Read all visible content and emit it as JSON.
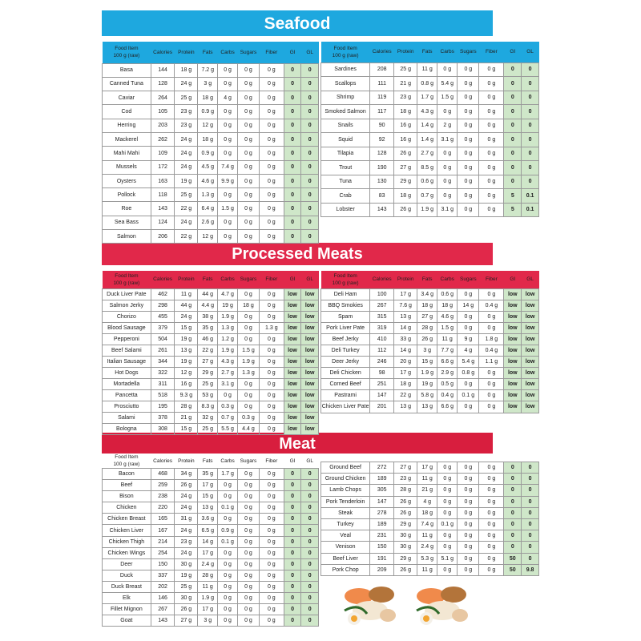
{
  "colors": {
    "seafood": "#1ea8df",
    "processed": "#e1284a",
    "meat": "#d81e3e",
    "gi_cell": "#cfe7c9"
  },
  "sections": {
    "seafood": "Seafood",
    "processed": "Processed Meats",
    "meat": "Meat"
  },
  "headers": [
    "Food Item\n100 g (raw)",
    "Calories",
    "Protein",
    "Fats",
    "Carbs",
    "Sugars",
    "Fiber",
    "GI",
    "GL"
  ],
  "tables": {
    "seafood_left": [
      [
        "Basa",
        "144",
        "18 g",
        "7.2 g",
        "0 g",
        "0 g",
        "0 g",
        "0",
        "0"
      ],
      [
        "Canned Tuna",
        "128",
        "24 g",
        "3 g",
        "0 g",
        "0 g",
        "0 g",
        "0",
        "0"
      ],
      [
        "Caviar",
        "264",
        "25 g",
        "18 g",
        "4 g",
        "0 g",
        "0 g",
        "0",
        "0"
      ],
      [
        "Cod",
        "105",
        "23 g",
        "0.9 g",
        "0 g",
        "0 g",
        "0 g",
        "0",
        "0"
      ],
      [
        "Herring",
        "203",
        "23 g",
        "12 g",
        "0 g",
        "0 g",
        "0 g",
        "0",
        "0"
      ],
      [
        "Mackerel",
        "262",
        "24 g",
        "18 g",
        "0 g",
        "0 g",
        "0 g",
        "0",
        "0"
      ],
      [
        "Mahi Mahi",
        "109",
        "24 g",
        "0.9 g",
        "0 g",
        "0 g",
        "0 g",
        "0",
        "0"
      ],
      [
        "Mussels",
        "172",
        "24 g",
        "4.5 g",
        "7.4 g",
        "0 g",
        "0 g",
        "0",
        "0"
      ],
      [
        "Oysters",
        "163",
        "19 g",
        "4.6 g",
        "9.9 g",
        "0 g",
        "0 g",
        "0",
        "0"
      ],
      [
        "Pollock",
        "118",
        "25 g",
        "1.3 g",
        "0 g",
        "0 g",
        "0 g",
        "0",
        "0"
      ],
      [
        "Roe",
        "143",
        "22 g",
        "6.4 g",
        "1.5 g",
        "0 g",
        "0 g",
        "0",
        "0"
      ],
      [
        "Sea Bass",
        "124",
        "24 g",
        "2.6 g",
        "0 g",
        "0 g",
        "0 g",
        "0",
        "0"
      ],
      [
        "Salmon",
        "206",
        "22 g",
        "12 g",
        "0 g",
        "0 g",
        "0 g",
        "0",
        "0"
      ]
    ],
    "seafood_right": [
      [
        "Sardines",
        "208",
        "25 g",
        "11 g",
        "0 g",
        "0 g",
        "0 g",
        "0",
        "0"
      ],
      [
        "Scallops",
        "111",
        "21 g",
        "0.8 g",
        "5.4 g",
        "0 g",
        "0 g",
        "0",
        "0"
      ],
      [
        "Shrimp",
        "119",
        "23 g",
        "1.7 g",
        "1.5 g",
        "0 g",
        "0 g",
        "0",
        "0"
      ],
      [
        "Smoked Salmon",
        "117",
        "18 g",
        "4.3 g",
        "0 g",
        "0 g",
        "0 g",
        "0",
        "0"
      ],
      [
        "Snails",
        "90",
        "16 g",
        "1.4 g",
        "2 g",
        "0 g",
        "0 g",
        "0",
        "0"
      ],
      [
        "Squid",
        "92",
        "16 g",
        "1.4 g",
        "3.1 g",
        "0 g",
        "0 g",
        "0",
        "0"
      ],
      [
        "Tilapia",
        "128",
        "26 g",
        "2.7 g",
        "0 g",
        "0 g",
        "0 g",
        "0",
        "0"
      ],
      [
        "Trout",
        "190",
        "27 g",
        "8.5 g",
        "0 g",
        "0 g",
        "0 g",
        "0",
        "0"
      ],
      [
        "Tuna",
        "130",
        "29 g",
        "0.6 g",
        "0 g",
        "0 g",
        "0 g",
        "0",
        "0"
      ],
      [
        "Crab",
        "83",
        "18 g",
        "0.7 g",
        "0 g",
        "0 g",
        "0 g",
        "5",
        "0.1"
      ],
      [
        "Lobster",
        "143",
        "26 g",
        "1.9 g",
        "3.1 g",
        "0 g",
        "0 g",
        "5",
        "0.1"
      ]
    ],
    "processed_left": [
      [
        "Duck Liver Pate",
        "462",
        "11 g",
        "44 g",
        "4.7 g",
        "0 g",
        "0 g",
        "low",
        "low"
      ],
      [
        "Salmon Jerky",
        "298",
        "44 g",
        "4.4 g",
        "19 g",
        "18 g",
        "0 g",
        "low",
        "low"
      ],
      [
        "Chorizo",
        "455",
        "24 g",
        "38 g",
        "1.9 g",
        "0 g",
        "0 g",
        "low",
        "low"
      ],
      [
        "Blood Sausage",
        "379",
        "15 g",
        "35 g",
        "1.3 g",
        "0 g",
        "1.3 g",
        "low",
        "low"
      ],
      [
        "Pepperoni",
        "504",
        "19 g",
        "46 g",
        "1.2 g",
        "0 g",
        "0 g",
        "low",
        "low"
      ],
      [
        "Beef Salami",
        "261",
        "13 g",
        "22 g",
        "1.9 g",
        "1.5 g",
        "0 g",
        "low",
        "low"
      ],
      [
        "Italian Sausage",
        "344",
        "19 g",
        "27 g",
        "4.3 g",
        "1.9 g",
        "0 g",
        "low",
        "low"
      ],
      [
        "Hot Dogs",
        "322",
        "12 g",
        "29 g",
        "2.7 g",
        "1.3 g",
        "0 g",
        "low",
        "low"
      ],
      [
        "Mortadella",
        "311",
        "16 g",
        "25 g",
        "3.1 g",
        "0 g",
        "0 g",
        "low",
        "low"
      ],
      [
        "Pancetta",
        "518",
        "9.3 g",
        "53 g",
        "0 g",
        "0 g",
        "0 g",
        "low",
        "low"
      ],
      [
        "Prosciutto",
        "195",
        "28 g",
        "8.3 g",
        "0.3 g",
        "0 g",
        "0 g",
        "low",
        "low"
      ],
      [
        "Salami",
        "378",
        "21 g",
        "32 g",
        "0.7 g",
        "0.3 g",
        "0 g",
        "low",
        "low"
      ],
      [
        "Bologna",
        "308",
        "15 g",
        "25 g",
        "5.5 g",
        "4.4 g",
        "0 g",
        "low",
        "low"
      ]
    ],
    "processed_right": [
      [
        "Deli Ham",
        "100",
        "17 g",
        "3.4 g",
        "0.6 g",
        "0 g",
        "0 g",
        "low",
        "low"
      ],
      [
        "BBQ Smokies",
        "267",
        "7.6 g",
        "18 g",
        "18 g",
        "14 g",
        "0.4 g",
        "low",
        "low"
      ],
      [
        "Spam",
        "315",
        "13 g",
        "27 g",
        "4.6 g",
        "0 g",
        "0 g",
        "low",
        "low"
      ],
      [
        "Pork Liver Pate",
        "319",
        "14 g",
        "28 g",
        "1.5 g",
        "0 g",
        "0 g",
        "low",
        "low"
      ],
      [
        "Beef Jerky",
        "410",
        "33 g",
        "26 g",
        "11 g",
        "9 g",
        "1.8 g",
        "low",
        "low"
      ],
      [
        "Deli Turkey",
        "112",
        "14 g",
        "3 g",
        "7.7 g",
        "4 g",
        "0.4 g",
        "low",
        "low"
      ],
      [
        "Deer Jerky",
        "246",
        "20 g",
        "15 g",
        "6.6 g",
        "5.4 g",
        "1.1 g",
        "low",
        "low"
      ],
      [
        "Deli Chicken",
        "98",
        "17 g",
        "1.9 g",
        "2.9 g",
        "0.8 g",
        "0 g",
        "low",
        "low"
      ],
      [
        "Corned Beef",
        "251",
        "18 g",
        "19 g",
        "0.5 g",
        "0 g",
        "0 g",
        "low",
        "low"
      ],
      [
        "Pastrami",
        "147",
        "22 g",
        "5.8 g",
        "0.4 g",
        "0.1 g",
        "0 g",
        "low",
        "low"
      ],
      [
        "Chicken Liver Pate",
        "201",
        "13 g",
        "13 g",
        "6.6 g",
        "0 g",
        "0 g",
        "low",
        "low"
      ]
    ],
    "meat_left": [
      [
        "Bacon",
        "468",
        "34 g",
        "35 g",
        "1.7 g",
        "0 g",
        "0 g",
        "0",
        "0"
      ],
      [
        "Beef",
        "259",
        "26 g",
        "17 g",
        "0 g",
        "0 g",
        "0 g",
        "0",
        "0"
      ],
      [
        "Bison",
        "238",
        "24 g",
        "15 g",
        "0 g",
        "0 g",
        "0 g",
        "0",
        "0"
      ],
      [
        "Chicken",
        "220",
        "24 g",
        "13 g",
        "0.1 g",
        "0 g",
        "0 g",
        "0",
        "0"
      ],
      [
        "Chicken Breast",
        "165",
        "31 g",
        "3.6 g",
        "0 g",
        "0 g",
        "0 g",
        "0",
        "0"
      ],
      [
        "Chicken Liver",
        "167",
        "24 g",
        "6.5 g",
        "0.9 g",
        "0 g",
        "0 g",
        "0",
        "0"
      ],
      [
        "Chicken Thigh",
        "214",
        "23 g",
        "14 g",
        "0.1 g",
        "0 g",
        "0 g",
        "0",
        "0"
      ],
      [
        "Chicken Wings",
        "254",
        "24 g",
        "17 g",
        "0 g",
        "0 g",
        "0 g",
        "0",
        "0"
      ],
      [
        "Deer",
        "150",
        "30 g",
        "2.4 g",
        "0 g",
        "0 g",
        "0 g",
        "0",
        "0"
      ],
      [
        "Duck",
        "337",
        "19 g",
        "28 g",
        "0 g",
        "0 g",
        "0 g",
        "0",
        "0"
      ],
      [
        "Duck Breast",
        "202",
        "25 g",
        "11 g",
        "0 g",
        "0 g",
        "0 g",
        "0",
        "0"
      ],
      [
        "Elk",
        "146",
        "30 g",
        "1.9 g",
        "0 g",
        "0 g",
        "0 g",
        "0",
        "0"
      ],
      [
        "Fillet Mignon",
        "267",
        "26 g",
        "17 g",
        "0 g",
        "0 g",
        "0 g",
        "0",
        "0"
      ],
      [
        "Goat",
        "143",
        "27 g",
        "3 g",
        "0 g",
        "0 g",
        "0 g",
        "0",
        "0"
      ]
    ],
    "meat_right": [
      [
        "Ground Beef",
        "272",
        "27 g",
        "17 g",
        "0 g",
        "0 g",
        "0 g",
        "0",
        "0"
      ],
      [
        "Ground Chicken",
        "189",
        "23 g",
        "11 g",
        "0 g",
        "0 g",
        "0 g",
        "0",
        "0"
      ],
      [
        "Lamb Chops",
        "305",
        "28 g",
        "21 g",
        "0 g",
        "0 g",
        "0 g",
        "0",
        "0"
      ],
      [
        "Pork Tenderloin",
        "147",
        "26 g",
        "4 g",
        "0 g",
        "0 g",
        "0 g",
        "0",
        "0"
      ],
      [
        "Steak",
        "278",
        "26 g",
        "18 g",
        "0 g",
        "0 g",
        "0 g",
        "0",
        "0"
      ],
      [
        "Turkey",
        "189",
        "29 g",
        "7.4 g",
        "0.1 g",
        "0 g",
        "0 g",
        "0",
        "0"
      ],
      [
        "Veal",
        "231",
        "30 g",
        "11 g",
        "0 g",
        "0 g",
        "0 g",
        "0",
        "0"
      ],
      [
        "Venison",
        "150",
        "30 g",
        "2.4 g",
        "0 g",
        "0 g",
        "0 g",
        "0",
        "0"
      ],
      [
        "Beef Liver",
        "191",
        "29 g",
        "5.3 g",
        "5.1 g",
        "0 g",
        "0 g",
        "50",
        "0"
      ],
      [
        "Pork Chop",
        "209",
        "26 g",
        "11 g",
        "0 g",
        "0 g",
        "0 g",
        "50",
        "9.8"
      ]
    ]
  }
}
